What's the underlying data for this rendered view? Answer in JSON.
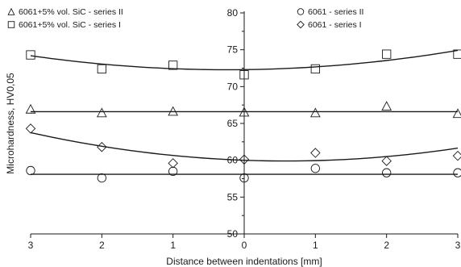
{
  "chart_data": {
    "type": "scatter",
    "title": "",
    "xlabel": "Distance between indentations [mm]",
    "ylabel": "Microhardness, HV0,05",
    "xlim": [
      -3,
      3
    ],
    "ylim": [
      50,
      80
    ],
    "x_ticks": [
      -3,
      -2,
      -1,
      0,
      1,
      2,
      3
    ],
    "x_tick_labels": [
      "3",
      "2",
      "1",
      "0",
      "1",
      "2",
      "3"
    ],
    "y_ticks": [
      50,
      55,
      60,
      65,
      70,
      75,
      80
    ],
    "y_tick_labels": [
      "50",
      "55",
      "60",
      "65",
      "70",
      "75",
      "80"
    ],
    "grid": false,
    "legend_position": "top",
    "series": [
      {
        "name": "6061+5% vol. SiC - series II",
        "marker": "triangle",
        "x": [
          -3,
          -2,
          -1,
          0,
          1,
          2,
          3
        ],
        "y": [
          66.9,
          66.4,
          66.6,
          66.5,
          66.4,
          67.3,
          66.3
        ],
        "fit": [
          66.6,
          0,
          0
        ]
      },
      {
        "name": "6061+5% vol. SiC - series I",
        "marker": "square",
        "x": [
          -3,
          -2,
          -1,
          0,
          1,
          2,
          3
        ],
        "y": [
          74.3,
          72.4,
          72.9,
          71.6,
          72.4,
          74.4,
          74.4
        ],
        "fit": [
          72.3,
          0.12,
          0.25
        ]
      },
      {
        "name": "6061 - series II",
        "marker": "circle",
        "x": [
          -3,
          -2,
          -1,
          0,
          1,
          2,
          3
        ],
        "y": [
          58.6,
          57.6,
          58.5,
          57.6,
          58.9,
          58.3,
          58.3
        ],
        "fit": [
          58.1,
          0,
          0
        ]
      },
      {
        "name": "6061 - series I",
        "marker": "diamond",
        "x": [
          -3,
          -2,
          -1,
          0,
          1,
          2,
          3
        ],
        "y": [
          64.3,
          61.8,
          59.6,
          60.1,
          61.0,
          59.9,
          60.6
        ],
        "fit": [
          60.0,
          -0.35,
          0.3
        ]
      }
    ]
  }
}
